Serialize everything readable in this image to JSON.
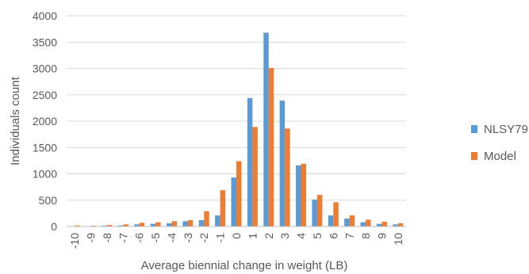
{
  "chart_data": {
    "type": "bar",
    "title": "",
    "xlabel": "Average biennial change in weight (LB)",
    "ylabel": "Individuals count",
    "ylim": [
      0,
      4000
    ],
    "yticks": [
      0,
      500,
      1000,
      1500,
      2000,
      2500,
      3000,
      3500,
      4000
    ],
    "grid": true,
    "legend_position": "right",
    "categories": [
      "-10",
      "-9",
      "-8",
      "-7",
      "-6",
      "-5",
      "-4",
      "-3",
      "-2",
      "-1",
      "0",
      "1",
      "2",
      "3",
      "4",
      "5",
      "6",
      "7",
      "8",
      "9",
      "10"
    ],
    "series": [
      {
        "name": "NLSY79",
        "color": "#5B9BD5",
        "values": [
          5,
          5,
          15,
          20,
          40,
          50,
          60,
          100,
          120,
          210,
          930,
          2440,
          3680,
          2390,
          1160,
          510,
          210,
          150,
          80,
          50,
          40
        ]
      },
      {
        "name": "Model",
        "color": "#ED7D31",
        "values": [
          20,
          15,
          30,
          40,
          70,
          80,
          100,
          120,
          290,
          690,
          1240,
          1890,
          3010,
          1860,
          1190,
          600,
          460,
          210,
          130,
          90,
          60
        ]
      }
    ]
  }
}
